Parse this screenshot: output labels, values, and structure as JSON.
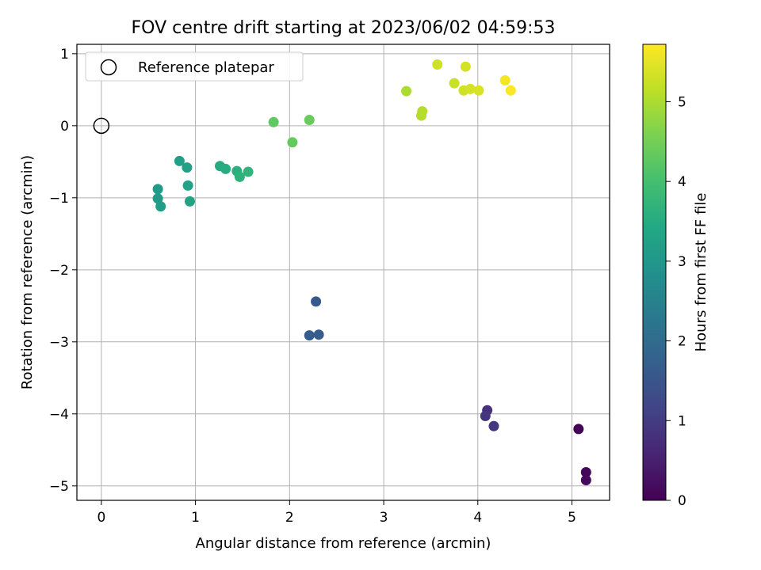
{
  "chart_data": {
    "type": "scatter",
    "title": "FOV centre drift starting at 2023/06/02 04:59:53",
    "xlabel": "Angular distance from reference (arcmin)",
    "ylabel": "Rotation from reference (arcmin)",
    "xlim": [
      -0.26,
      5.4
    ],
    "ylim": [
      -5.2,
      1.13
    ],
    "xticks": [
      "0",
      "1",
      "2",
      "3",
      "4",
      "5"
    ],
    "yticks": [
      "−5",
      "−4",
      "−3",
      "−2",
      "−1",
      "0",
      "1"
    ],
    "grid": true,
    "legend": {
      "placement": "top-left",
      "entries": [
        "Reference platepar"
      ]
    },
    "reference_point": {
      "x": 0,
      "y": 0
    },
    "colorbar": {
      "label": "Hours from first FF file",
      "range": [
        0,
        5.72
      ],
      "ticks": [
        "0",
        "1",
        "2",
        "3",
        "4",
        "5"
      ],
      "colormap": "viridis"
    },
    "points": [
      {
        "x": 5.07,
        "y": -4.21,
        "c": 0.02
      },
      {
        "x": 5.15,
        "y": -4.81,
        "c": 0.1
      },
      {
        "x": 5.15,
        "y": -4.92,
        "c": 0.15
      },
      {
        "x": 4.1,
        "y": -3.95,
        "c": 0.8
      },
      {
        "x": 4.08,
        "y": -4.03,
        "c": 0.85
      },
      {
        "x": 4.17,
        "y": -4.17,
        "c": 0.9
      },
      {
        "x": 2.28,
        "y": -2.44,
        "c": 1.6
      },
      {
        "x": 2.21,
        "y": -2.91,
        "c": 1.65
      },
      {
        "x": 2.31,
        "y": -2.9,
        "c": 1.7
      },
      {
        "x": 0.6,
        "y": -0.88,
        "c": 3.1
      },
      {
        "x": 0.6,
        "y": -1.01,
        "c": 3.12
      },
      {
        "x": 0.63,
        "y": -1.12,
        "c": 3.15
      },
      {
        "x": 0.83,
        "y": -0.49,
        "c": 3.2
      },
      {
        "x": 0.91,
        "y": -0.58,
        "c": 3.25
      },
      {
        "x": 0.92,
        "y": -0.83,
        "c": 3.28
      },
      {
        "x": 0.94,
        "y": -1.05,
        "c": 3.3
      },
      {
        "x": 1.26,
        "y": -0.56,
        "c": 3.5
      },
      {
        "x": 1.32,
        "y": -0.6,
        "c": 3.55
      },
      {
        "x": 1.44,
        "y": -0.63,
        "c": 3.6
      },
      {
        "x": 1.47,
        "y": -0.71,
        "c": 3.65
      },
      {
        "x": 1.56,
        "y": -0.64,
        "c": 3.7
      },
      {
        "x": 1.83,
        "y": 0.05,
        "c": 4.3
      },
      {
        "x": 2.03,
        "y": -0.23,
        "c": 4.35
      },
      {
        "x": 2.21,
        "y": 0.08,
        "c": 4.4
      },
      {
        "x": 3.24,
        "y": 0.48,
        "c": 5.0
      },
      {
        "x": 3.4,
        "y": 0.14,
        "c": 5.05
      },
      {
        "x": 3.41,
        "y": 0.2,
        "c": 5.08
      },
      {
        "x": 3.57,
        "y": 0.85,
        "c": 5.3
      },
      {
        "x": 3.75,
        "y": 0.59,
        "c": 5.25
      },
      {
        "x": 3.85,
        "y": 0.49,
        "c": 5.3
      },
      {
        "x": 3.87,
        "y": 0.82,
        "c": 5.35
      },
      {
        "x": 3.92,
        "y": 0.51,
        "c": 5.35
      },
      {
        "x": 4.01,
        "y": 0.49,
        "c": 5.4
      },
      {
        "x": 4.29,
        "y": 0.63,
        "c": 5.62
      },
      {
        "x": 4.35,
        "y": 0.49,
        "c": 5.7
      }
    ]
  }
}
